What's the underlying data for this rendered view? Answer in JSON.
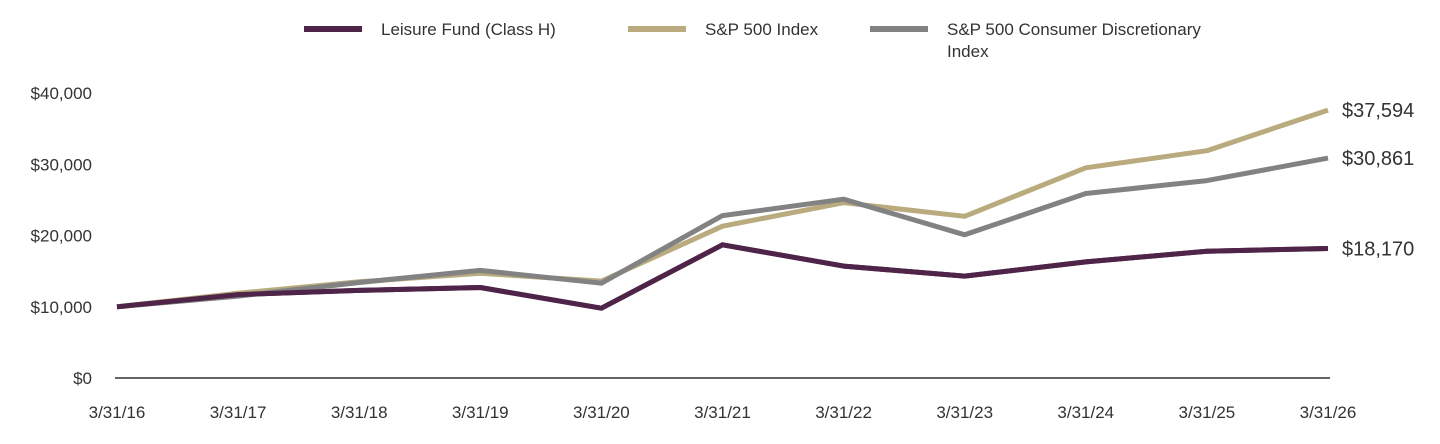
{
  "chart_data": {
    "type": "line",
    "title": "",
    "xlabel": "",
    "ylabel": "",
    "categories": [
      "3/31/16",
      "3/31/17",
      "3/31/18",
      "3/31/19",
      "3/31/20",
      "3/31/21",
      "3/31/22",
      "3/31/23",
      "3/31/24",
      "3/31/25",
      "3/31/26"
    ],
    "ylim": [
      0,
      40000
    ],
    "yticks": [
      0,
      10000,
      20000,
      30000,
      40000
    ],
    "ytick_labels": [
      "$0",
      "$10,000",
      "$20,000",
      "$30,000",
      "$40,000"
    ],
    "grid": false,
    "legend_position": "top",
    "series": [
      {
        "name": "Leisure Fund (Class H)",
        "color": "#4f2449",
        "values": [
          10000,
          11700,
          12300,
          12700,
          9800,
          18700,
          15700,
          14300,
          16300,
          17800,
          18170
        ],
        "end_label": "$18,170"
      },
      {
        "name": "S&P 500 Index",
        "color": "#b9ab7e",
        "values": [
          10000,
          11900,
          13500,
          14700,
          13600,
          21300,
          24600,
          22700,
          29500,
          31900,
          37594
        ],
        "end_label": "$37,594"
      },
      {
        "name": "S&P 500 Consumer Discretionary Index",
        "color": "#828282",
        "values": [
          10000,
          11500,
          13400,
          15100,
          13300,
          22800,
          25100,
          20100,
          25900,
          27700,
          30861
        ],
        "end_label": "$30,861"
      }
    ],
    "legend_lines": [
      [
        "Leisure Fund (Class H)"
      ],
      [
        "S&P 500 Index"
      ],
      [
        "S&P 500 Consumer Discretionary",
        "Index"
      ]
    ]
  }
}
